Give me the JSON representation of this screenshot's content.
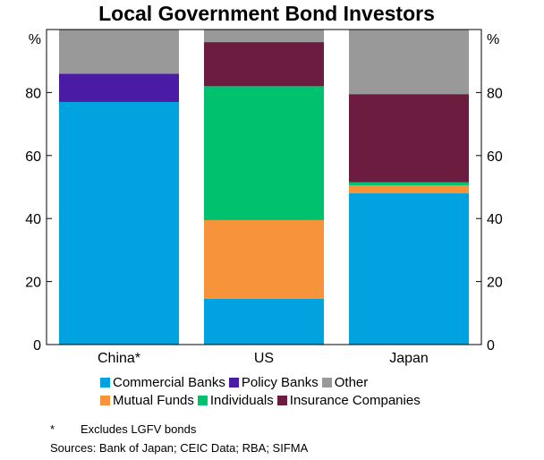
{
  "chart_data": {
    "type": "bar",
    "stacked": true,
    "title": "Local Government Bond Investors",
    "ylabel": "%",
    "ylim": [
      0,
      100
    ],
    "yticks": [
      0,
      20,
      40,
      60,
      80
    ],
    "categories": [
      "China*",
      "US",
      "Japan"
    ],
    "series": [
      {
        "name": "Commercial Banks",
        "color": "#00a3e0",
        "values": [
          77,
          14.5,
          48
        ]
      },
      {
        "name": "Mutual Funds",
        "color": "#f7943b",
        "values": [
          0,
          25,
          2.5
        ]
      },
      {
        "name": "Individuals",
        "color": "#00c16e",
        "values": [
          0,
          42.5,
          1
        ]
      },
      {
        "name": "Insurance Companies",
        "color": "#6b1c3f",
        "values": [
          0,
          14,
          28
        ]
      },
      {
        "name": "Policy Banks",
        "color": "#4a1ca6",
        "values": [
          9,
          0,
          0
        ]
      },
      {
        "name": "Other",
        "color": "#999999",
        "values": [
          14,
          4,
          20.5
        ]
      }
    ],
    "grid": false,
    "legend_position": "bottom"
  },
  "legend": {
    "row1": [
      "Commercial Banks",
      "Policy Banks",
      "Other"
    ],
    "row2": [
      "Mutual Funds",
      "Individuals",
      "Insurance Companies"
    ]
  },
  "footnote": {
    "marker": "*",
    "text": "Excludes LGFV bonds",
    "sources": "Sources:   Bank of Japan; CEIC Data; RBA; SIFMA"
  }
}
